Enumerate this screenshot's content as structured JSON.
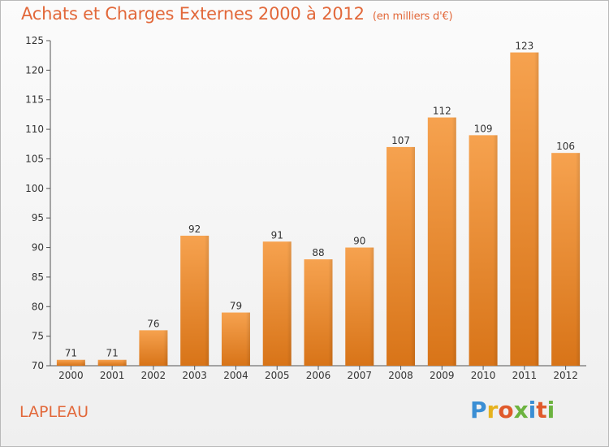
{
  "title": "Achats et Charges Externes 2000 à 2012",
  "unit_note": "(en milliers d'€)",
  "commune": "LAPLEAU",
  "logo": {
    "letters": [
      "P",
      "r",
      "o",
      "x",
      "i",
      "t",
      "i"
    ],
    "colors": [
      "#3a8ed4",
      "#e6b21e",
      "#e05a2b",
      "#6cb33f",
      "#3a8ed4",
      "#e05a2b",
      "#6cb33f"
    ]
  },
  "chart_data": {
    "type": "bar",
    "categories": [
      "2000",
      "2001",
      "2002",
      "2003",
      "2004",
      "2005",
      "2006",
      "2007",
      "2008",
      "2009",
      "2010",
      "2011",
      "2012"
    ],
    "values": [
      71,
      71,
      76,
      92,
      79,
      91,
      88,
      90,
      107,
      112,
      109,
      123,
      106
    ],
    "ylim": [
      70,
      125
    ],
    "yticks": [
      70,
      75,
      80,
      85,
      90,
      95,
      100,
      105,
      110,
      115,
      120,
      125
    ],
    "grid": false,
    "bar_color": "#f0923a"
  }
}
